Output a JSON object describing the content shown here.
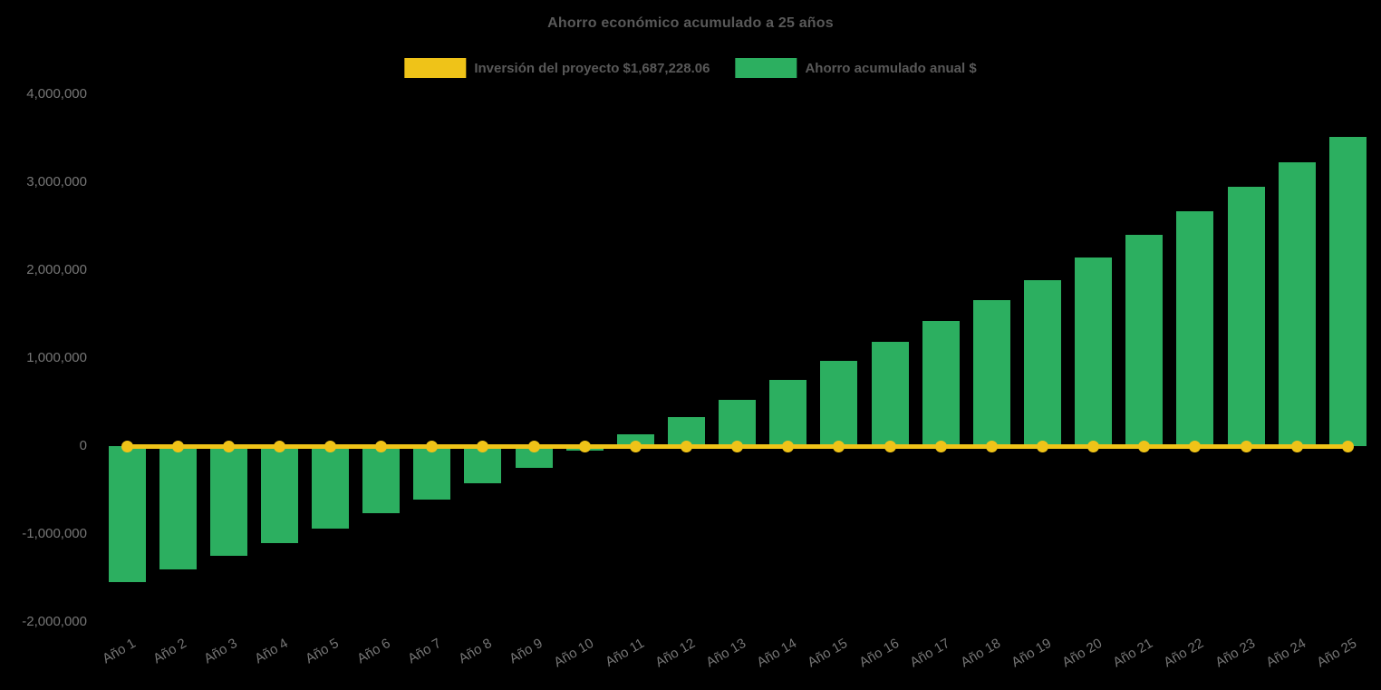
{
  "title": "Ahorro económico acumulado a 25 años",
  "background_color": "#000000",
  "legend": {
    "investment": {
      "label": "Inversión del proyecto $1,687,228.06",
      "color": "#EFC318"
    },
    "savings": {
      "label": "Ahorro acumulado anual $",
      "color": "#2CAF60"
    }
  },
  "chart_data": {
    "type": "bar",
    "title": "Ahorro económico acumulado a 25 años",
    "categories": [
      "Año 1",
      "Año 2",
      "Año 3",
      "Año 4",
      "Año 5",
      "Año 6",
      "Año 7",
      "Año 8",
      "Año 9",
      "Año 10",
      "Año 11",
      "Año 12",
      "Año 13",
      "Año 14",
      "Año 15",
      "Año 16",
      "Año 17",
      "Año 18",
      "Año 19",
      "Año 20",
      "Año 21",
      "Año 22",
      "Año 23",
      "Año 24",
      "Año 25"
    ],
    "series": [
      {
        "name": "Inversión del proyecto $1,687,228.06",
        "type": "line",
        "color": "#EFC318",
        "marker": "circle",
        "investment_amount_text": "$1,687,228.06",
        "values": [
          0,
          0,
          0,
          0,
          0,
          0,
          0,
          0,
          0,
          0,
          0,
          0,
          0,
          0,
          0,
          0,
          0,
          0,
          0,
          0,
          0,
          0,
          0,
          0,
          0
        ]
      },
      {
        "name": "Ahorro acumulado anual $",
        "type": "bar",
        "color": "#2CAF60",
        "values": [
          -1545000,
          -1405000,
          -1250000,
          -1105000,
          -940000,
          -760000,
          -610000,
          -425000,
          -245000,
          -55000,
          135000,
          325000,
          525000,
          750000,
          965000,
          1190000,
          1420000,
          1660000,
          1890000,
          2140000,
          2400000,
          2665000,
          2945000,
          3225000,
          3515000
        ]
      }
    ],
    "xlabel": "",
    "ylabel": "",
    "ylim": [
      -2000000,
      4000000
    ],
    "y_ticks": [
      4000000,
      3000000,
      2000000,
      1000000,
      0,
      -1000000,
      -2000000
    ],
    "grid": false,
    "legend_position": "top",
    "x_tick_rotation": -30,
    "background": "#000000",
    "text_color_title": "#595959",
    "text_color_axis": "#767676"
  }
}
